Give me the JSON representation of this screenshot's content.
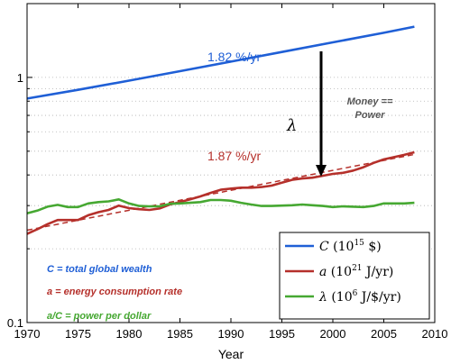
{
  "chart_data": {
    "type": "line",
    "xlabel": "Year",
    "ylabel": "",
    "xlim": [
      1970,
      2010
    ],
    "ylim": [
      0.1,
      2.0
    ],
    "yscale": "log",
    "x_ticks": [
      "1970",
      "1975",
      "1980",
      "1985",
      "1990",
      "1995",
      "2000",
      "2005",
      "2010"
    ],
    "y_ticks": [
      "0.1",
      "1"
    ],
    "grid": "dotted horizontal minor grid",
    "colors": {
      "C": "#1f5fd6",
      "a": "#b5302b",
      "lambda": "#46a832"
    },
    "series": [
      {
        "name": "C",
        "legend_symbol": "C",
        "legend_unit_base": "(10",
        "legend_unit_exp": "15",
        "legend_unit_rest": " $)",
        "x": [
          1970,
          1975,
          1980,
          1985,
          1990,
          1995,
          2000,
          2005,
          2008
        ],
        "y": [
          0.82,
          0.89,
          0.97,
          1.06,
          1.16,
          1.27,
          1.39,
          1.52,
          1.61
        ]
      },
      {
        "name": "a",
        "legend_symbol": "a",
        "legend_unit_base": "(10",
        "legend_unit_exp": "21",
        "legend_unit_rest": " J/yr)",
        "x": [
          1970,
          1971,
          1972,
          1973,
          1974,
          1975,
          1976,
          1977,
          1978,
          1979,
          1980,
          1981,
          1982,
          1983,
          1984,
          1985,
          1986,
          1987,
          1988,
          1989,
          1990,
          1991,
          1992,
          1993,
          1994,
          1995,
          1996,
          1997,
          1998,
          1999,
          2000,
          2001,
          2002,
          2003,
          2004,
          2005,
          2006,
          2007,
          2008
        ],
        "y": [
          0.23,
          0.24,
          0.252,
          0.262,
          0.262,
          0.262,
          0.274,
          0.282,
          0.288,
          0.3,
          0.293,
          0.29,
          0.288,
          0.292,
          0.303,
          0.31,
          0.318,
          0.327,
          0.338,
          0.348,
          0.352,
          0.355,
          0.355,
          0.357,
          0.362,
          0.372,
          0.382,
          0.387,
          0.39,
          0.397,
          0.404,
          0.408,
          0.417,
          0.43,
          0.448,
          0.463,
          0.473,
          0.483,
          0.495
        ]
      },
      {
        "name": "a trend",
        "dashed": true,
        "x": [
          1970,
          2008
        ],
        "y": [
          0.238,
          0.485
        ]
      },
      {
        "name": "λ",
        "legend_symbol": "λ",
        "legend_unit_base": "(10",
        "legend_unit_exp": "6",
        "legend_unit_rest": " J/$/yr)",
        "x": [
          1970,
          1971,
          1972,
          1973,
          1974,
          1975,
          1976,
          1977,
          1978,
          1979,
          1980,
          1981,
          1982,
          1983,
          1984,
          1985,
          1986,
          1987,
          1988,
          1989,
          1990,
          1991,
          1992,
          1993,
          1994,
          1995,
          1996,
          1997,
          1998,
          1999,
          2000,
          2001,
          2002,
          2003,
          2004,
          2005,
          2006,
          2007,
          2008
        ],
        "y": [
          0.279,
          0.286,
          0.297,
          0.302,
          0.296,
          0.296,
          0.306,
          0.31,
          0.312,
          0.318,
          0.306,
          0.299,
          0.298,
          0.298,
          0.305,
          0.306,
          0.308,
          0.31,
          0.316,
          0.316,
          0.314,
          0.308,
          0.303,
          0.299,
          0.299,
          0.3,
          0.301,
          0.303,
          0.301,
          0.299,
          0.296,
          0.298,
          0.297,
          0.296,
          0.299,
          0.306,
          0.306,
          0.306,
          0.308
        ]
      }
    ],
    "annotations": {
      "rate_c": "1.82 %/yr",
      "rate_a": "1.87 %/yr",
      "lambda_symbol": "λ",
      "money_line1": "Money ==",
      "money_line2": "Power",
      "def_c": "C = total global wealth",
      "def_a": "a = energy consumption rate",
      "def_lambda": "a/C = power per dollar"
    }
  }
}
